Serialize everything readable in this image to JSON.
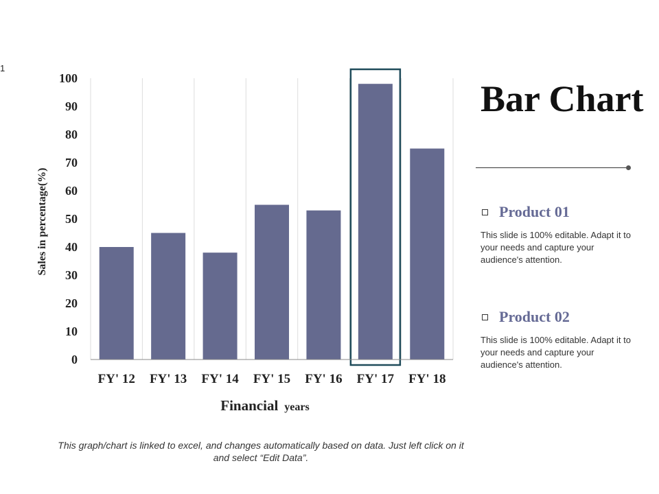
{
  "slide_number": "1",
  "title": "Bar Chart",
  "products": [
    {
      "name": "Product 01",
      "description": "This slide is 100% editable. Adapt it to your needs and capture your audience's attention."
    },
    {
      "name": "Product 02",
      "description": "This slide is 100% editable. Adapt it to your needs and capture your audience's attention."
    }
  ],
  "footnote": "This graph/chart is linked to excel, and changes automatically based on data. Just left click on it and select “Edit Data”.",
  "chart_data": {
    "type": "bar",
    "categories": [
      "FY' 12",
      "FY' 13",
      "FY' 14",
      "FY' 15",
      "FY' 16",
      "FY' 17",
      "FY' 18"
    ],
    "values": [
      40,
      45,
      38,
      55,
      53,
      98,
      75
    ],
    "ylabel": "Sales in percentage(%)",
    "xlabel_main": "Financial",
    "xlabel_sub": "years",
    "ylim": [
      0,
      100
    ],
    "yticks": [
      0,
      10,
      20,
      30,
      40,
      50,
      60,
      70,
      80,
      90,
      100
    ],
    "grid": "vertical",
    "highlighted_category": "FY' 17",
    "colors": {
      "bar": "#656a8f",
      "highlight_box": "#1f4b5a",
      "grid": "#dddddd",
      "axis": "#888888"
    }
  }
}
